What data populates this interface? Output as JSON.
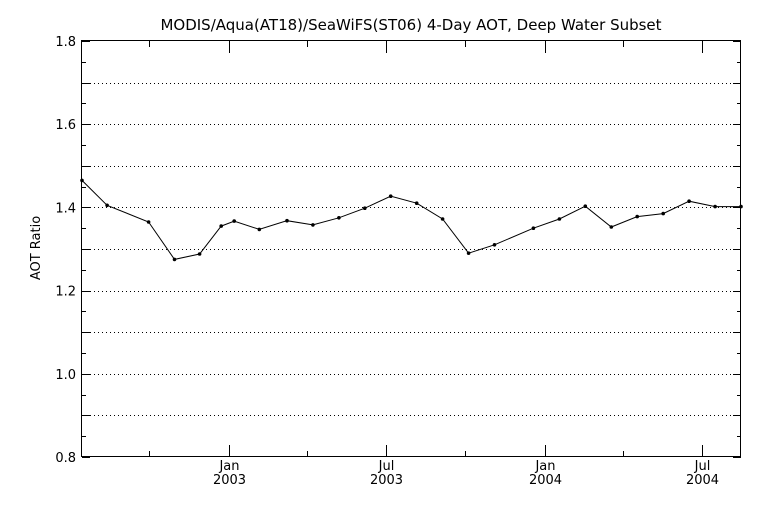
{
  "chart_data": {
    "type": "line",
    "title": "MODIS/Aqua(AT18)/SeaWiFS(ST06) 4-Day AOT, Deep Water Subset",
    "xlabel": "",
    "ylabel": "AOT Ratio",
    "ylim": [
      0.8,
      1.8
    ],
    "xlim": [
      "2002-07-15",
      "2004-08-15"
    ],
    "y_ticks": [
      "0.8",
      "1.0",
      "1.2",
      "1.4",
      "1.6",
      "1.8"
    ],
    "y_grid": [
      0.9,
      1.0,
      1.1,
      1.2,
      1.3,
      1.4,
      1.5,
      1.6,
      1.7
    ],
    "x_ticks": [
      {
        "date": "2003-01-01",
        "month": "Jan",
        "year": "2003"
      },
      {
        "date": "2003-07-01",
        "month": "Jul",
        "year": "2003"
      },
      {
        "date": "2004-01-01",
        "month": "Jan",
        "year": "2004"
      },
      {
        "date": "2004-07-01",
        "month": "Jul",
        "year": "2004"
      }
    ],
    "x_minor_ticks": [
      "2002-10-01",
      "2003-04-01",
      "2003-10-01",
      "2004-04-01"
    ],
    "grid": true,
    "series": [
      {
        "x": [
          "2002-07-15",
          "2002-08-13",
          "2002-09-30",
          "2002-10-30",
          "2002-11-28",
          "2002-12-23",
          "2003-01-07",
          "2003-02-05",
          "2003-03-09",
          "2003-04-08",
          "2003-05-08",
          "2003-06-07",
          "2003-07-07",
          "2003-08-06",
          "2003-09-05",
          "2003-10-05",
          "2003-11-04",
          "2003-12-19",
          "2004-01-18",
          "2004-02-17",
          "2004-03-18",
          "2004-04-17",
          "2004-05-17",
          "2004-06-16",
          "2004-07-16",
          "2004-08-15"
        ],
        "y": [
          1.465,
          1.405,
          1.365,
          1.275,
          1.288,
          1.355,
          1.367,
          1.347,
          1.368,
          1.358,
          1.375,
          1.398,
          1.427,
          1.41,
          1.372,
          1.29,
          1.31,
          1.35,
          1.372,
          1.403,
          1.353,
          1.378,
          1.385,
          1.415,
          1.402,
          1.402
        ]
      }
    ]
  }
}
